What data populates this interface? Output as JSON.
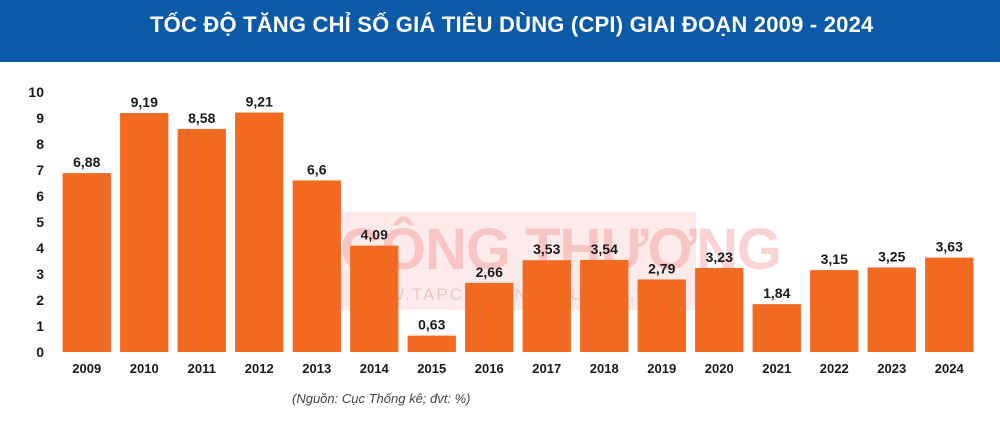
{
  "title": "TỐC ĐỘ TĂNG CHỈ SỐ GIÁ TIÊU DÙNG (CPI) GIAI ĐOẠN 2009 - 2024",
  "source": "(Nguồn: Cục Thống kê; đvt: %)",
  "watermark": {
    "main": "CÔNG THƯƠNG",
    "sub": "WWW.TAPCHICONGTHUONG.VN"
  },
  "colors": {
    "header": "#0a5aa7",
    "bar": "#f26a22",
    "text": "#1a1a1a"
  },
  "chart_data": {
    "type": "bar",
    "title": "TỐC ĐỘ TĂNG CHỈ SỐ GIÁ TIÊU DÙNG (CPI) GIAI ĐOẠN 2009 - 2024",
    "categories": [
      "2009",
      "2010",
      "2011",
      "2012",
      "2013",
      "2014",
      "2015",
      "2016",
      "2017",
      "2018",
      "2019",
      "2020",
      "2021",
      "2022",
      "2023",
      "2024"
    ],
    "values": [
      6.88,
      9.19,
      8.58,
      9.21,
      6.6,
      4.09,
      0.63,
      2.66,
      3.53,
      3.54,
      2.79,
      3.23,
      1.84,
      3.15,
      3.25,
      3.63
    ],
    "value_labels": [
      "6,88",
      "9,19",
      "8,58",
      "9,21",
      "6,6",
      "4,09",
      "0,63",
      "2,66",
      "3,53",
      "3,54",
      "2,79",
      "3,23",
      "1,84",
      "3,15",
      "3,25",
      "3,63"
    ],
    "yticks": [
      0,
      1,
      2,
      3,
      4,
      5,
      6,
      7,
      8,
      9,
      10
    ],
    "ylim": [
      0,
      10
    ],
    "xlabel": "",
    "ylabel": "",
    "grid": false,
    "legend": "none"
  }
}
